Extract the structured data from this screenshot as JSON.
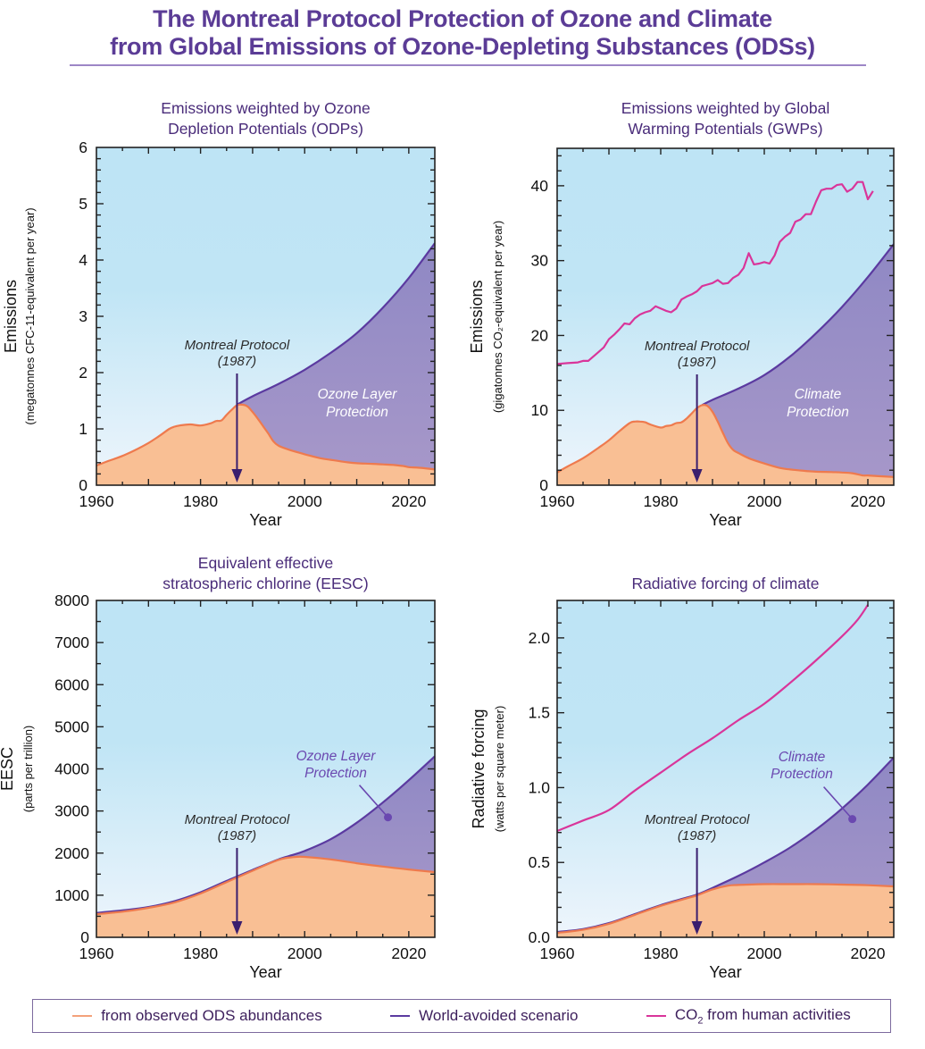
{
  "figure": {
    "title_line1": "The Montreal Protocol Protection of Ozone and Climate",
    "title_line2": "from Global Emissions of Ozone-Depleting Substances (ODSs)"
  },
  "colors": {
    "observed_line": "#ee7a4e",
    "observed_fill": "#f9bf94",
    "avoided_line": "#5b3aa0",
    "avoided_fill": "#9a8dc6",
    "co2_line": "#d9359a",
    "bg_top": "#bee4f5",
    "bg_bottom": "#eef5fc",
    "arrow": "#3a1e6e",
    "title": "#5b3c96"
  },
  "legend": {
    "items": [
      {
        "label": "from observed ODS abundances",
        "color": "#f4a17a"
      },
      {
        "label": "World-avoided scenario",
        "color": "#5b3aa0"
      },
      {
        "label_main": "CO",
        "label_sub": "2",
        "label_rest": " from human activities",
        "color": "#d9359a"
      }
    ]
  },
  "chart_data": [
    {
      "id": "odp",
      "type": "area",
      "title_line1": "Emissions weighted by Ozone",
      "title_line2": "Depletion Potentials (ODPs)",
      "xlabel": "Year",
      "ylabel": "Emissions",
      "ylabel_sub": "(megatonnes CFC-11-equivalent per year)",
      "xlim": [
        1960,
        2025
      ],
      "ylim": [
        0,
        6
      ],
      "xticks": [
        1960,
        1980,
        2000,
        2020
      ],
      "xminor": 5,
      "yticks": [
        0,
        1,
        2,
        3,
        4,
        5,
        6
      ],
      "ytick_labels": [
        "0",
        "1",
        "2",
        "3",
        "4",
        "5",
        "6"
      ],
      "yminor": 0.2,
      "series": [
        {
          "name": "from observed ODS abundances",
          "x": [
            1960,
            1962,
            1965,
            1968,
            1970,
            1972,
            1974,
            1975,
            1976,
            1978,
            1980,
            1982,
            1983,
            1984,
            1985,
            1986,
            1987,
            1988,
            1989,
            1990,
            1991,
            1992,
            1993,
            1994,
            1995,
            1997,
            2000,
            2003,
            2005,
            2008,
            2010,
            2013,
            2015,
            2017,
            2019,
            2020,
            2022,
            2025
          ],
          "y": [
            0.35,
            0.42,
            0.52,
            0.65,
            0.75,
            0.87,
            1.0,
            1.04,
            1.06,
            1.08,
            1.06,
            1.1,
            1.14,
            1.15,
            1.25,
            1.34,
            1.42,
            1.43,
            1.4,
            1.3,
            1.18,
            1.05,
            0.92,
            0.78,
            0.7,
            0.63,
            0.55,
            0.48,
            0.45,
            0.41,
            0.39,
            0.38,
            0.37,
            0.36,
            0.34,
            0.32,
            0.31,
            0.28
          ]
        },
        {
          "name": "World-avoided scenario",
          "x": [
            1987,
            1990,
            1995,
            2000,
            2005,
            2010,
            2015,
            2020,
            2025
          ],
          "y": [
            1.43,
            1.58,
            1.8,
            2.05,
            2.35,
            2.7,
            3.15,
            3.68,
            4.3
          ]
        }
      ],
      "annotations": {
        "protocol_line1": "Montreal Protocol",
        "protocol_line2": "(1987)",
        "protocol_year": 1987,
        "area_line1": "Ozone Layer",
        "area_line2": "Protection"
      }
    },
    {
      "id": "gwp",
      "type": "area",
      "title_line1": "Emissions weighted by Global",
      "title_line2": "Warming Potentials (GWPs)",
      "xlabel": "Year",
      "ylabel": "Emissions",
      "ylabel_sub": "(gigatonnes CO₂-equivalent per year)",
      "xlim": [
        1960,
        2025
      ],
      "ylim": [
        0,
        45
      ],
      "xticks": [
        1960,
        1980,
        2000,
        2020
      ],
      "xminor": 5,
      "yticks": [
        0,
        10,
        20,
        30,
        40
      ],
      "ytick_labels": [
        "0",
        "10",
        "20",
        "30",
        "40"
      ],
      "yminor": 2,
      "series": [
        {
          "name": "from observed ODS abundances",
          "x": [
            1960,
            1962,
            1965,
            1968,
            1970,
            1972,
            1974,
            1975,
            1976,
            1977,
            1978,
            1980,
            1981,
            1982,
            1983,
            1984,
            1985,
            1986,
            1987,
            1988,
            1989,
            1990,
            1991,
            1992,
            1993,
            1994,
            1995,
            1997,
            2000,
            2003,
            2005,
            2008,
            2010,
            2013,
            2015,
            2017,
            2019,
            2020,
            2022,
            2025
          ],
          "y": [
            1.7,
            2.5,
            3.6,
            5.0,
            6.0,
            7.2,
            8.3,
            8.5,
            8.5,
            8.4,
            8.1,
            7.7,
            7.9,
            8.0,
            8.3,
            8.4,
            8.9,
            9.6,
            10.3,
            10.7,
            10.6,
            9.8,
            8.5,
            7.0,
            5.6,
            4.7,
            4.3,
            3.6,
            2.9,
            2.3,
            2.1,
            1.9,
            1.8,
            1.75,
            1.7,
            1.6,
            1.3,
            1.3,
            1.2,
            1.1
          ]
        },
        {
          "name": "World-avoided scenario",
          "x": [
            1988,
            1990,
            1995,
            2000,
            2005,
            2010,
            2015,
            2020,
            2025
          ],
          "y": [
            10.7,
            11.4,
            12.9,
            14.7,
            17.2,
            20.3,
            23.8,
            27.8,
            32.2
          ]
        },
        {
          "name": "CO2 from human activities",
          "x": [
            1960,
            1962,
            1964,
            1965,
            1966,
            1968,
            1969,
            1970,
            1971,
            1972,
            1973,
            1974,
            1975,
            1976,
            1977,
            1978,
            1979,
            1980,
            1981,
            1982,
            1983,
            1984,
            1985,
            1986,
            1987,
            1988,
            1989,
            1990,
            1991,
            1992,
            1993,
            1994,
            1995,
            1996,
            1997,
            1998,
            1999,
            2000,
            2001,
            2002,
            2003,
            2004,
            2005,
            2006,
            2007,
            2008,
            2009,
            2010,
            2011,
            2012,
            2013,
            2014,
            2015,
            2016,
            2017,
            2018,
            2019,
            2020,
            2021
          ],
          "y": [
            16.2,
            16.3,
            16.4,
            16.6,
            16.6,
            17.8,
            18.4,
            19.5,
            20.1,
            20.8,
            21.6,
            21.5,
            22.3,
            22.8,
            23.1,
            23.3,
            23.9,
            23.6,
            23.3,
            23.1,
            23.6,
            24.8,
            25.2,
            25.5,
            25.9,
            26.6,
            26.8,
            27.0,
            27.4,
            26.9,
            27.0,
            27.7,
            28.1,
            29.0,
            31.0,
            29.5,
            29.6,
            29.8,
            29.6,
            30.7,
            32.5,
            33.2,
            33.7,
            35.2,
            35.5,
            36.2,
            36.2,
            37.9,
            39.4,
            39.6,
            39.6,
            40.1,
            40.2,
            39.2,
            39.6,
            40.5,
            40.5,
            38.2,
            39.3
          ]
        }
      ],
      "annotations": {
        "protocol_line1": "Montreal Protocol",
        "protocol_line2": "(1987)",
        "protocol_year": 1987,
        "area_line1": "Climate",
        "area_line2": "Protection"
      }
    },
    {
      "id": "eesc",
      "type": "area",
      "title_line1": "Equivalent effective",
      "title_line2": "stratospheric chlorine (EESC)",
      "xlabel": "Year",
      "ylabel": "EESC",
      "ylabel_sub": "(parts per trillion)",
      "xlim": [
        1960,
        2025
      ],
      "ylim": [
        0,
        8000
      ],
      "xticks": [
        1960,
        1980,
        2000,
        2020
      ],
      "xminor": 5,
      "yticks": [
        0,
        1000,
        2000,
        3000,
        4000,
        5000,
        6000,
        7000,
        8000
      ],
      "ytick_labels": [
        "0",
        "1000",
        "2000",
        "3000",
        "4000",
        "5000",
        "6000",
        "7000",
        "8000"
      ],
      "yminor": 500,
      "series": [
        {
          "name": "from observed ODS abundances",
          "x": [
            1960,
            1965,
            1970,
            1975,
            1980,
            1985,
            1990,
            1995,
            1998,
            2000,
            2005,
            2010,
            2015,
            2020,
            2025
          ],
          "y": [
            550,
            610,
            700,
            830,
            1040,
            1310,
            1580,
            1840,
            1905,
            1910,
            1850,
            1760,
            1680,
            1610,
            1550
          ]
        },
        {
          "name": "World-avoided scenario",
          "x": [
            1960,
            1965,
            1970,
            1975,
            1980,
            1985,
            1990,
            1995,
            1997,
            2000,
            2005,
            2010,
            2015,
            2020,
            2025
          ],
          "y": [
            580,
            640,
            720,
            860,
            1070,
            1340,
            1600,
            1850,
            1930,
            2050,
            2330,
            2720,
            3200,
            3730,
            4300
          ]
        }
      ],
      "annotations": {
        "protocol_line1": "Montreal Protocol",
        "protocol_line2": "(1987)",
        "protocol_year": 1987,
        "area_line1": "Ozone Layer",
        "area_line2": "Protection",
        "pointer_year": 2016,
        "pointer_value": 2850
      }
    },
    {
      "id": "rf",
      "type": "area",
      "title_line1": "Radiative forcing of climate",
      "title_line2": "",
      "xlabel": "Year",
      "ylabel": "Radiative forcing",
      "ylabel_sub": "(watts per square meter)",
      "xlim": [
        1960,
        2025
      ],
      "ylim": [
        0,
        2.25
      ],
      "xticks": [
        1960,
        1980,
        2000,
        2020
      ],
      "xminor": 5,
      "yticks": [
        0,
        0.5,
        1.0,
        1.5,
        2.0
      ],
      "ytick_labels": [
        "0.0",
        "0.5",
        "1.0",
        "1.5",
        "2.0"
      ],
      "yminor": 0.1,
      "series": [
        {
          "name": "from observed ODS abundances",
          "x": [
            1960,
            1965,
            1970,
            1975,
            1980,
            1985,
            1987,
            1990,
            1993,
            1995,
            2000,
            2005,
            2010,
            2015,
            2020,
            2025
          ],
          "y": [
            0.03,
            0.05,
            0.09,
            0.15,
            0.21,
            0.26,
            0.28,
            0.32,
            0.345,
            0.35,
            0.355,
            0.355,
            0.355,
            0.352,
            0.348,
            0.34
          ]
        },
        {
          "name": "World-avoided scenario",
          "x": [
            1960,
            1965,
            1970,
            1975,
            1980,
            1985,
            1987,
            1990,
            1995,
            2000,
            2005,
            2010,
            2015,
            2020,
            2025
          ],
          "y": [
            0.035,
            0.055,
            0.095,
            0.155,
            0.215,
            0.265,
            0.285,
            0.33,
            0.41,
            0.5,
            0.6,
            0.72,
            0.86,
            1.02,
            1.2
          ]
        },
        {
          "name": "CO2 from human activities",
          "x": [
            1960,
            1965,
            1970,
            1975,
            1980,
            1985,
            1990,
            1995,
            2000,
            2005,
            2010,
            2015,
            2018,
            2020
          ],
          "y": [
            0.71,
            0.78,
            0.85,
            0.98,
            1.1,
            1.22,
            1.33,
            1.45,
            1.56,
            1.7,
            1.85,
            2.01,
            2.12,
            2.22
          ]
        }
      ],
      "annotations": {
        "protocol_line1": "Montreal Protocol",
        "protocol_line2": "(1987)",
        "protocol_year": 1987,
        "area_line1": "Climate",
        "area_line2": "Protection",
        "pointer_year": 2017,
        "pointer_value": 0.79
      }
    }
  ]
}
